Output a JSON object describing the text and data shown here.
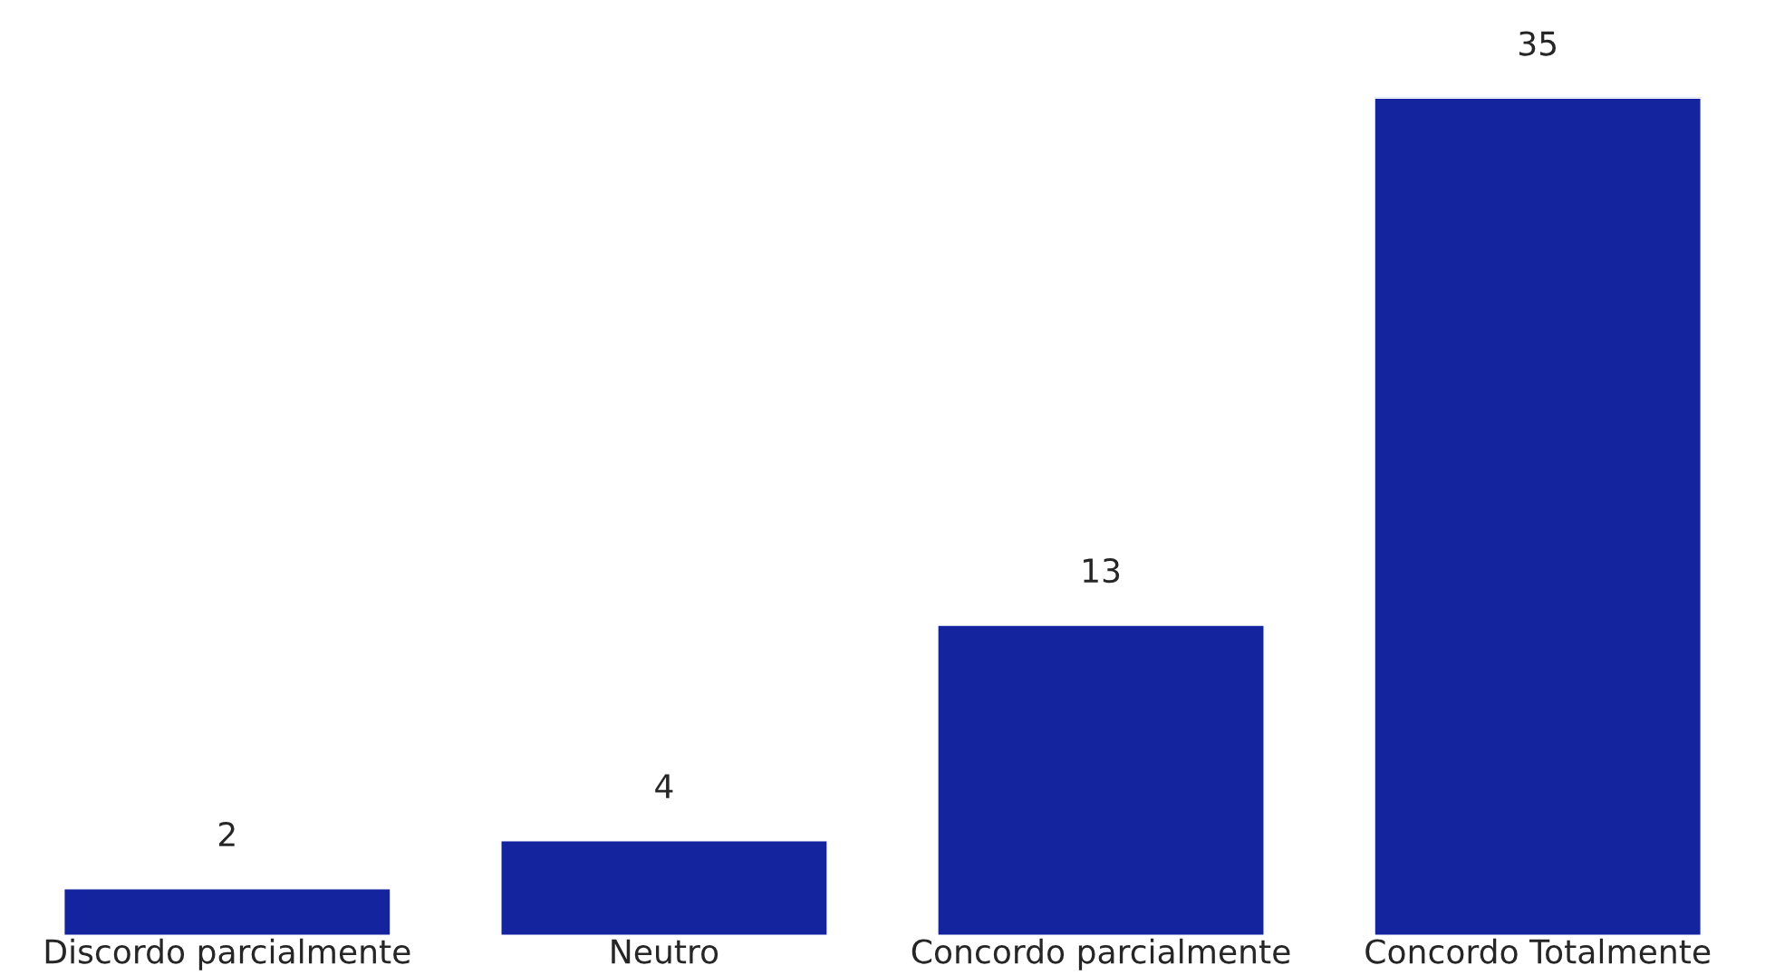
{
  "chart_data": {
    "type": "bar",
    "categories": [
      "Discordo parcialmente",
      "Neutro",
      "Concordo parcialmente",
      "Concordo Totalmente"
    ],
    "values": [
      2,
      4,
      13,
      35
    ],
    "color": "#13249e",
    "data_labels": true,
    "grid": false,
    "legend": false
  }
}
